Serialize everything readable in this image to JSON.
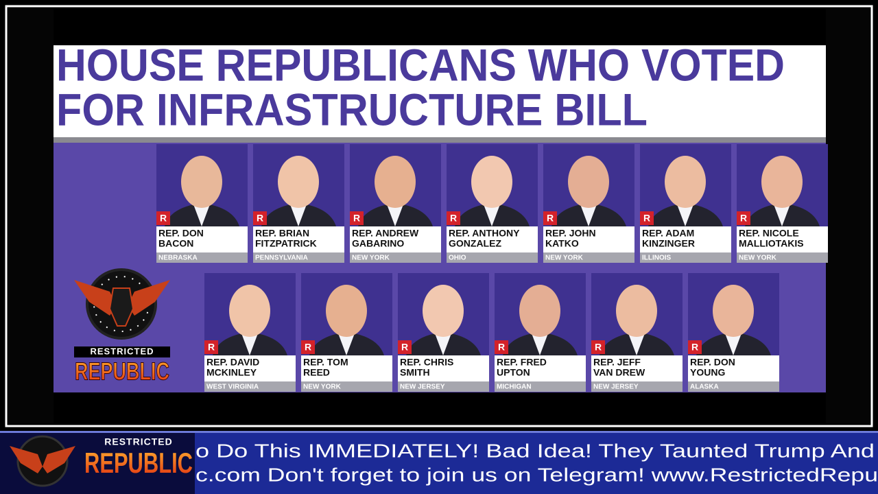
{
  "graphic": {
    "title_lines": [
      "HOUSE REPUBLICANS WHO VOTED",
      "FOR INFRASTRUCTURE BILL"
    ],
    "rows": [
      [
        {
          "party": "R",
          "name": [
            "REP. DON",
            "BACON"
          ],
          "state": "NEBRASKA"
        },
        {
          "party": "R",
          "name": [
            "REP. BRIAN",
            "FITZPATRICK"
          ],
          "state": "PENNSYLVANIA"
        },
        {
          "party": "R",
          "name": [
            "REP. ANDREW",
            "GABARINO"
          ],
          "state": "NEW YORK"
        },
        {
          "party": "R",
          "name": [
            "REP. ANTHONY",
            "GONZALEZ"
          ],
          "state": "OHIO"
        },
        {
          "party": "R",
          "name": [
            "REP. JOHN",
            "KATKO"
          ],
          "state": "NEW YORK"
        },
        {
          "party": "R",
          "name": [
            "REP. ADAM",
            "KINZINGER"
          ],
          "state": "ILLINOIS"
        },
        {
          "party": "R",
          "name": [
            "REP. NICOLE",
            "MALLIOTAKIS"
          ],
          "state": "NEW YORK"
        }
      ],
      [
        {
          "party": "R",
          "name": [
            "REP. DAVID",
            "MCKINLEY"
          ],
          "state": "WEST VIRGINIA"
        },
        {
          "party": "R",
          "name": [
            "REP. TOM",
            "REED"
          ],
          "state": "NEW YORK"
        },
        {
          "party": "R",
          "name": [
            "REP. CHRIS",
            "SMITH"
          ],
          "state": "NEW JERSEY"
        },
        {
          "party": "R",
          "name": [
            "REP. FRED",
            "UPTON"
          ],
          "state": "MICHIGAN"
        },
        {
          "party": "R",
          "name": [
            "REP. JEFF",
            "VAN DREW"
          ],
          "state": "NEW JERSEY"
        },
        {
          "party": "R",
          "name": [
            "REP. DON",
            "YOUNG"
          ],
          "state": "ALASKA"
        }
      ]
    ]
  },
  "logo": {
    "top": "RESTRICTED",
    "bottom": "REPUBLIC"
  },
  "ticker": {
    "logo_top": "RESTRICTED",
    "logo_bottom": "REPUBLIC",
    "lines": [
      "o Do This IMMEDIATELY!  Bad Idea! They Taunted Trump And",
      "c.com Don't forget to join us on Telegram!   www.RestrictedRepu"
    ]
  }
}
